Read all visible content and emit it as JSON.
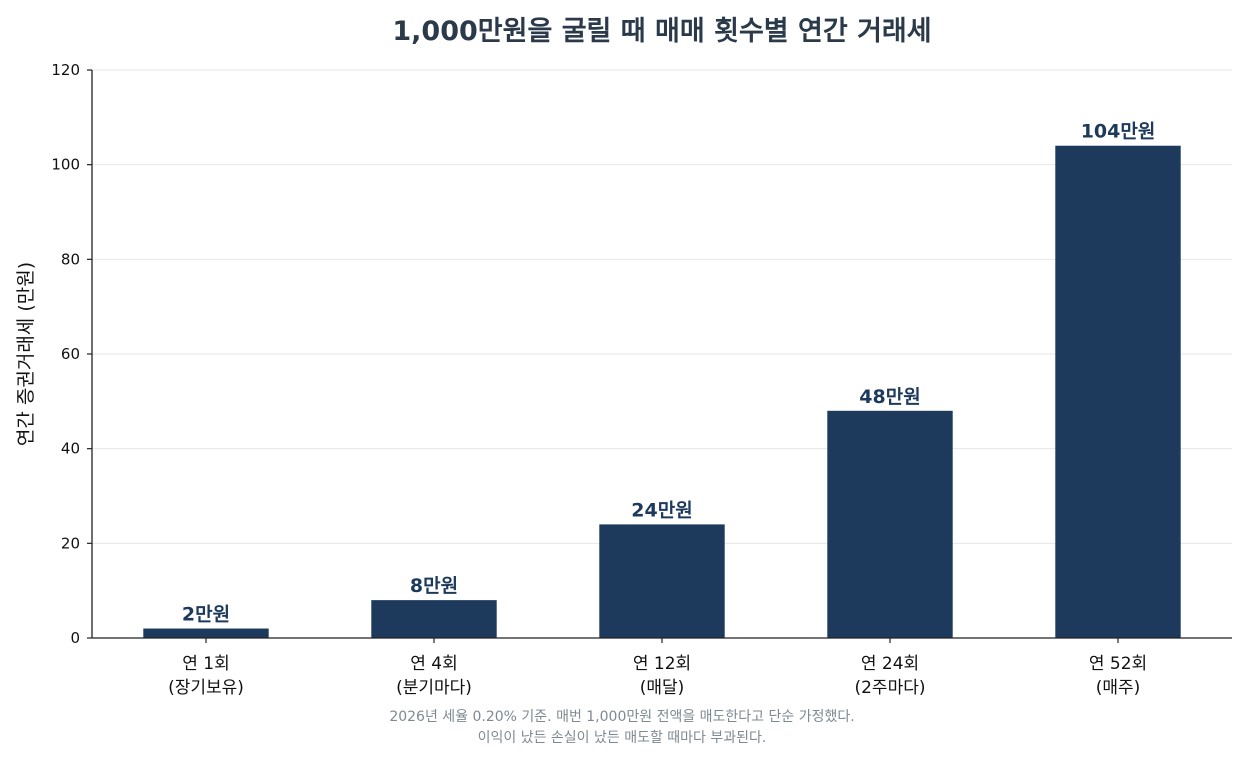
{
  "chart_data": {
    "type": "bar",
    "title": "1,000만원을 굴릴 때 매매 횟수별 연간 거래세",
    "ylabel": "연간 증권거래세 (만원)",
    "xlabel": "",
    "categories": [
      [
        "연 1회",
        "(장기보유)"
      ],
      [
        "연 4회",
        "(분기마다)"
      ],
      [
        "연 12회",
        "(매달)"
      ],
      [
        "연 24회",
        "(2주마다)"
      ],
      [
        "연 52회",
        "(매주)"
      ]
    ],
    "values": [
      2,
      8,
      24,
      48,
      104
    ],
    "value_labels": [
      "2만원",
      "8만원",
      "24만원",
      "48만원",
      "104만원"
    ],
    "ylim": [
      0,
      120
    ],
    "yticks": [
      0,
      20,
      40,
      60,
      80,
      100,
      120
    ],
    "grid": "horizontal",
    "legend": "none",
    "colors": {
      "bar": "#1d3a5c",
      "value_label": "#1d3a5c",
      "grid": "#e6e6e6",
      "axis": "#222222",
      "title": "#2b3a4a",
      "footnote": "#7f8a90"
    },
    "footnote": [
      "2026년 세율 0.20% 기준. 매번 1,000만원 전액을 매도한다고 단순 가정했다.",
      "이익이 났든 손실이 났든 매도할 때마다 부과된다."
    ]
  }
}
